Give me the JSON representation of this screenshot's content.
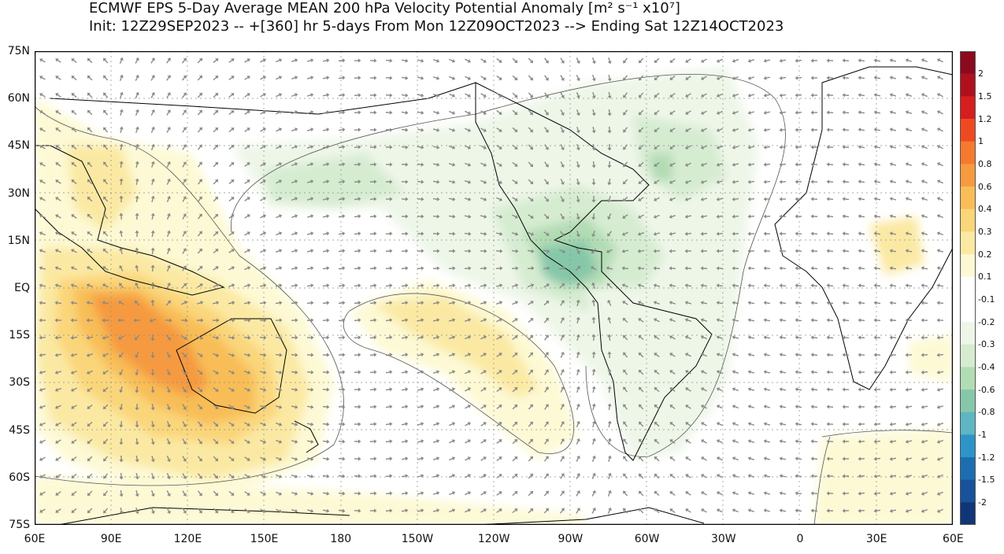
{
  "header": {
    "title_line1": "ECMWF EPS 5-Day Average MEAN 200 hPa Velocity Potential Anomaly [m² s⁻¹ x10⁷]",
    "title_line2": "Init: 12Z29SEP2023 -- +[360] hr   5-days From Mon 12Z09OCT2023 --> Ending Sat 12Z14OCT2023"
  },
  "axes": {
    "lat_labels": [
      "75N",
      "60N",
      "45N",
      "30N",
      "15N",
      "EQ",
      "15S",
      "30S",
      "45S",
      "60S",
      "75S"
    ],
    "lon_labels": [
      "60E",
      "90E",
      "120E",
      "150E",
      "180",
      "150W",
      "120W",
      "90W",
      "60W",
      "30W",
      "0",
      "30E",
      "60E"
    ]
  },
  "colorbar": {
    "labels": [
      "2",
      "1.5",
      "1.2",
      "1",
      "0.8",
      "0.6",
      "0.4",
      "0.3",
      "0.2",
      "0.1",
      "-0.1",
      "-0.2",
      "-0.3",
      "-0.4",
      "-0.6",
      "-0.8",
      "-1",
      "-1.2",
      "-1.5",
      "-2"
    ],
    "colors": [
      "#8b0a1e",
      "#b0101e",
      "#d61e1e",
      "#ee4a22",
      "#f47a2e",
      "#f59a3f",
      "#f8bd57",
      "#fad67a",
      "#fbe9a3",
      "#fdf9d4",
      "#ffffff",
      "#ffffff",
      "#eef6e8",
      "#d6ecd1",
      "#b2dcb4",
      "#86c7a9",
      "#5db6c2",
      "#2d94c7",
      "#1d6eb0",
      "#17529a",
      "#113677"
    ]
  },
  "anomaly_regions": {
    "positive": "Indian Ocean / Maritime Continent / Australia (max ~0.8-1), central South Pacific, East Africa, Southern Ocean",
    "negative": "Central America / eastern Pacific (min ~-0.8), North Atlantic, tropical Americas"
  }
}
